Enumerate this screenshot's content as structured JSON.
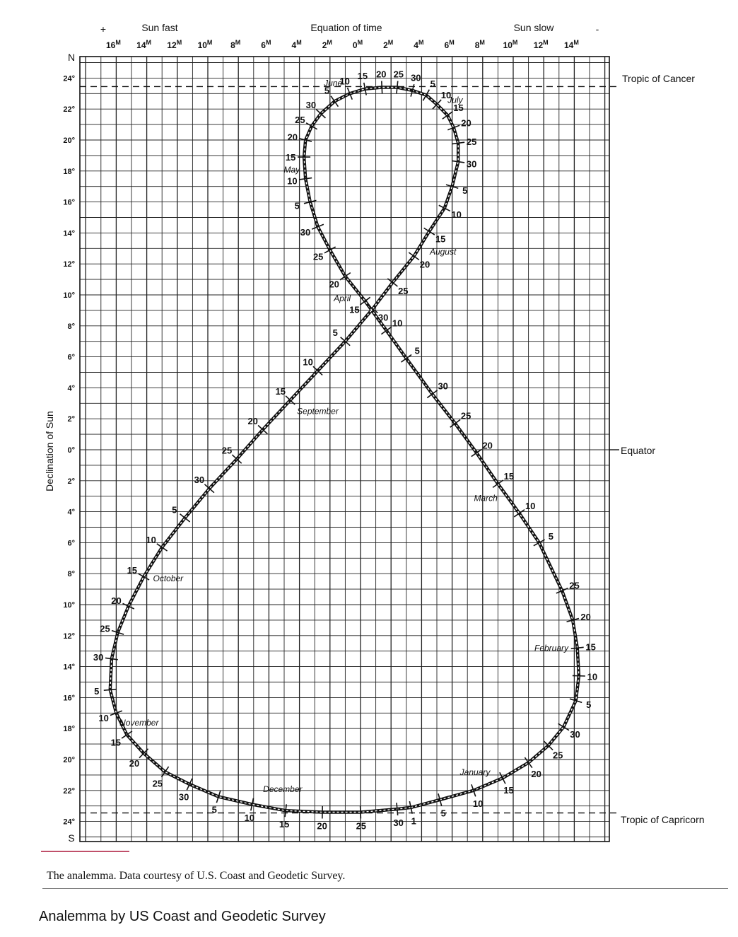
{
  "header": {
    "sun_fast_sign": "+",
    "sun_fast": "Sun fast",
    "equation_of_time": "Equation of time",
    "sun_slow": "Sun slow",
    "sun_slow_sign": "-"
  },
  "axis": {
    "ylabel": "Declination of Sun",
    "north": "N",
    "south": "S",
    "x_tick_labels": [
      "16M",
      "14M",
      "12M",
      "10M",
      "8M",
      "6M",
      "4M",
      "2M",
      "0M",
      "2M",
      "4M",
      "6M",
      "8M",
      "10M",
      "12M",
      "14M"
    ],
    "y_tick_labels": [
      "24°",
      "22°",
      "20°",
      "18°",
      "16°",
      "14°",
      "12°",
      "10°",
      "8°",
      "6°",
      "4°",
      "2°",
      "0°",
      "2°",
      "4°",
      "6°",
      "8°",
      "10°",
      "12°",
      "14°",
      "16°",
      "18°",
      "20°",
      "22°",
      "24°"
    ]
  },
  "reference_lines": {
    "tropic_of_cancer": "Tropic of Cancer",
    "equator": "Equator",
    "tropic_of_capricorn": "Tropic of Capricorn"
  },
  "caption": "The analemma. Data courtesy of U.S. Coast and Geodetic Survey.",
  "subcaption": "Analemma by US Coast and Geodetic Survey",
  "chart_data": {
    "type": "line",
    "x_units": "minutes (sun slow positive)",
    "y_units": "degrees declination (north positive)",
    "xlim": [
      -17,
      15
    ],
    "ylim": [
      -24.5,
      24.5
    ],
    "grid": true,
    "series": [
      {
        "name": "Analemma",
        "points": [
          {
            "month": "January",
            "day": 1,
            "x": 3.3,
            "y": -23.1
          },
          {
            "month": "January",
            "day": 5,
            "x": 5.2,
            "y": -22.6
          },
          {
            "month": "January",
            "day": 10,
            "x": 7.4,
            "y": -22.0
          },
          {
            "month": "January",
            "day": 15,
            "x": 9.3,
            "y": -21.2
          },
          {
            "month": "January",
            "day": 20,
            "x": 11.0,
            "y": -20.2
          },
          {
            "month": "January",
            "day": 25,
            "x": 12.3,
            "y": -19.1
          },
          {
            "month": "January",
            "day": 30,
            "x": 13.3,
            "y": -17.9
          },
          {
            "month": "February",
            "day": 5,
            "x": 14.1,
            "y": -16.2
          },
          {
            "month": "February",
            "day": 10,
            "x": 14.3,
            "y": -14.6
          },
          {
            "month": "February",
            "day": 15,
            "x": 14.2,
            "y": -12.8
          },
          {
            "month": "February",
            "day": 20,
            "x": 13.9,
            "y": -11.0
          },
          {
            "month": "February",
            "day": 25,
            "x": 13.2,
            "y": -9.1
          },
          {
            "month": "March",
            "day": 5,
            "x": 11.7,
            "y": -6.0
          },
          {
            "month": "March",
            "day": 10,
            "x": 10.4,
            "y": -4.1
          },
          {
            "month": "March",
            "day": 15,
            "x": 9.0,
            "y": -2.2
          },
          {
            "month": "March",
            "day": 20,
            "x": 7.6,
            "y": -0.2
          },
          {
            "month": "March",
            "day": 25,
            "x": 6.2,
            "y": 1.7
          },
          {
            "month": "March",
            "day": 30,
            "x": 4.7,
            "y": 3.6
          },
          {
            "month": "April",
            "day": 5,
            "x": 3.0,
            "y": 5.9
          },
          {
            "month": "April",
            "day": 10,
            "x": 1.7,
            "y": 7.7
          },
          {
            "month": "April",
            "day": 15,
            "x": 0.3,
            "y": 9.6
          },
          {
            "month": "April",
            "day": 20,
            "x": -1.0,
            "y": 11.2
          },
          {
            "month": "April",
            "day": 25,
            "x": -2.0,
            "y": 12.9
          },
          {
            "month": "April",
            "day": 30,
            "x": -2.8,
            "y": 14.4
          },
          {
            "month": "May",
            "day": 5,
            "x": -3.3,
            "y": 16.0
          },
          {
            "month": "May",
            "day": 10,
            "x": -3.6,
            "y": 17.5
          },
          {
            "month": "May",
            "day": 15,
            "x": -3.7,
            "y": 18.9
          },
          {
            "month": "May",
            "day": 20,
            "x": -3.6,
            "y": 20.0
          },
          {
            "month": "May",
            "day": 25,
            "x": -3.2,
            "y": 20.9
          },
          {
            "month": "May",
            "day": 30,
            "x": -2.6,
            "y": 21.7
          },
          {
            "month": "June",
            "day": 5,
            "x": -1.7,
            "y": 22.5
          },
          {
            "month": "June",
            "day": 10,
            "x": -0.7,
            "y": 23.0
          },
          {
            "month": "June",
            "day": 15,
            "x": 0.3,
            "y": 23.3
          },
          {
            "month": "June",
            "day": 20,
            "x": 1.4,
            "y": 23.4
          },
          {
            "month": "June",
            "day": 25,
            "x": 2.4,
            "y": 23.4
          },
          {
            "month": "June",
            "day": 30,
            "x": 3.4,
            "y": 23.2
          },
          {
            "month": "July",
            "day": 5,
            "x": 4.3,
            "y": 22.9
          },
          {
            "month": "July",
            "day": 10,
            "x": 5.0,
            "y": 22.3
          },
          {
            "month": "July",
            "day": 15,
            "x": 5.7,
            "y": 21.6
          },
          {
            "month": "July",
            "day": 20,
            "x": 6.1,
            "y": 20.8
          },
          {
            "month": "July",
            "day": 25,
            "x": 6.4,
            "y": 19.8
          },
          {
            "month": "July",
            "day": 30,
            "x": 6.4,
            "y": 18.6
          },
          {
            "month": "August",
            "day": 5,
            "x": 6.0,
            "y": 17.0
          },
          {
            "month": "August",
            "day": 10,
            "x": 5.5,
            "y": 15.6
          },
          {
            "month": "August",
            "day": 15,
            "x": 4.5,
            "y": 14.1
          },
          {
            "month": "August",
            "day": 20,
            "x": 3.5,
            "y": 12.5
          },
          {
            "month": "August",
            "day": 25,
            "x": 2.1,
            "y": 10.8
          },
          {
            "month": "August",
            "day": 30,
            "x": 0.8,
            "y": 9.1
          },
          {
            "month": "September",
            "day": 5,
            "x": -1.0,
            "y": 7.0
          },
          {
            "month": "September",
            "day": 10,
            "x": -2.8,
            "y": 5.1
          },
          {
            "month": "September",
            "day": 15,
            "x": -4.6,
            "y": 3.2
          },
          {
            "month": "September",
            "day": 20,
            "x": -6.4,
            "y": 1.3
          },
          {
            "month": "September",
            "day": 25,
            "x": -8.1,
            "y": -0.6
          },
          {
            "month": "September",
            "day": 30,
            "x": -9.9,
            "y": -2.5
          },
          {
            "month": "October",
            "day": 5,
            "x": -11.5,
            "y": -4.4
          },
          {
            "month": "October",
            "day": 10,
            "x": -13.0,
            "y": -6.3
          },
          {
            "month": "October",
            "day": 15,
            "x": -14.2,
            "y": -8.2
          },
          {
            "month": "October",
            "day": 20,
            "x": -15.2,
            "y": -10.1
          },
          {
            "month": "October",
            "day": 25,
            "x": -15.9,
            "y": -11.8
          },
          {
            "month": "October",
            "day": 30,
            "x": -16.3,
            "y": -13.5
          },
          {
            "month": "November",
            "day": 5,
            "x": -16.4,
            "y": -15.5
          },
          {
            "month": "November",
            "day": 10,
            "x": -16.0,
            "y": -17.0
          },
          {
            "month": "November",
            "day": 15,
            "x": -15.3,
            "y": -18.4
          },
          {
            "month": "November",
            "day": 20,
            "x": -14.2,
            "y": -19.6
          },
          {
            "month": "November",
            "day": 25,
            "x": -12.8,
            "y": -20.8
          },
          {
            "month": "November",
            "day": 30,
            "x": -11.2,
            "y": -21.6
          },
          {
            "month": "December",
            "day": 5,
            "x": -9.3,
            "y": -22.4
          },
          {
            "month": "December",
            "day": 10,
            "x": -7.1,
            "y": -22.9
          },
          {
            "month": "December",
            "day": 15,
            "x": -4.9,
            "y": -23.3
          },
          {
            "month": "December",
            "day": 20,
            "x": -2.5,
            "y": -23.4
          },
          {
            "month": "December",
            "day": 25,
            "x": 0.0,
            "y": -23.4
          },
          {
            "month": "December",
            "day": 30,
            "x": 2.4,
            "y": -23.2
          }
        ]
      }
    ],
    "month_labels": [
      {
        "text": "January",
        "x": 7.5,
        "y": -21.0
      },
      {
        "text": "February",
        "x": 12.5,
        "y": -13.0
      },
      {
        "text": "March",
        "x": 8.2,
        "y": -3.3
      },
      {
        "text": "April",
        "x": -1.2,
        "y": 9.6
      },
      {
        "text": "May",
        "x": -4.5,
        "y": 17.9
      },
      {
        "text": "June",
        "x": -1.8,
        "y": 23.5
      },
      {
        "text": "July",
        "x": 6.2,
        "y": 22.4
      },
      {
        "text": "August",
        "x": 5.4,
        "y": 12.6
      },
      {
        "text": "September",
        "x": -2.8,
        "y": 2.3
      },
      {
        "text": "October",
        "x": -12.6,
        "y": -8.5
      },
      {
        "text": "November",
        "x": -14.5,
        "y": -17.8
      },
      {
        "text": "December",
        "x": -5.1,
        "y": -22.1
      }
    ]
  }
}
